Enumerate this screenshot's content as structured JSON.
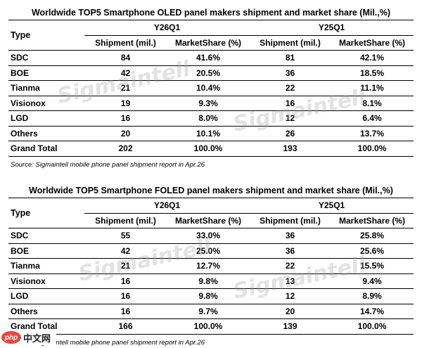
{
  "watermark": "Sigmaintell",
  "overlay": {
    "logo": "php",
    "text": "中文网"
  },
  "tables": [
    {
      "title": "Worldwide TOP5 Smartphone OLED panel makers shipment and market share (Mil.,%)",
      "type_header": "Type",
      "periods": [
        "Y26Q1",
        "Y25Q1"
      ],
      "col_shipment": "Shipment (mil.)",
      "col_share": "MarketShare (%)",
      "rows": [
        {
          "name": "SDC",
          "s1": "84",
          "m1": "41.6%",
          "s2": "81",
          "m2": "42.1%"
        },
        {
          "name": "BOE",
          "s1": "42",
          "m1": "20.5%",
          "s2": "36",
          "m2": "18.5%"
        },
        {
          "name": "Tianma",
          "s1": "21",
          "m1": "10.4%",
          "s2": "22",
          "m2": "11.1%"
        },
        {
          "name": "Visionox",
          "s1": "19",
          "m1": "9.3%",
          "s2": "16",
          "m2": "8.1%"
        },
        {
          "name": "LGD",
          "s1": "16",
          "m1": "8.0%",
          "s2": "12",
          "m2": "6.4%"
        },
        {
          "name": "Others",
          "s1": "20",
          "m1": "10.1%",
          "s2": "26",
          "m2": "13.7%"
        },
        {
          "name": "Grand Total",
          "s1": "202",
          "m1": "100.0%",
          "s2": "193",
          "m2": "100.0%"
        }
      ],
      "source": "Source: Sigmaintell mobile phone panel shipment report in Apr.26"
    },
    {
      "title": "Worldwide TOP5 Smartphone FOLED panel makers shipment and market share (Mil.,%)",
      "type_header": "Type",
      "periods": [
        "Y26Q1",
        "Y25Q1"
      ],
      "col_shipment": "Shipment (mil.)",
      "col_share": "MarketShare (%)",
      "rows": [
        {
          "name": "SDC",
          "s1": "55",
          "m1": "33.0%",
          "s2": "36",
          "m2": "25.8%"
        },
        {
          "name": "BOE",
          "s1": "42",
          "m1": "25.0%",
          "s2": "36",
          "m2": "25.6%"
        },
        {
          "name": "Tianma",
          "s1": "21",
          "m1": "12.7%",
          "s2": "22",
          "m2": "15.5%"
        },
        {
          "name": "Visionox",
          "s1": "16",
          "m1": "9.8%",
          "s2": "13",
          "m2": "9.4%"
        },
        {
          "name": "LGD",
          "s1": "16",
          "m1": "9.8%",
          "s2": "12",
          "m2": "8.9%"
        },
        {
          "name": "Others",
          "s1": "16",
          "m1": "9.7%",
          "s2": "20",
          "m2": "14.7%"
        },
        {
          "name": "Grand Total",
          "s1": "166",
          "m1": "100.0%",
          "s2": "139",
          "m2": "100.0%"
        }
      ],
      "source": "Source: Sigmaintell mobile phone panel shipment report in Apr.26"
    }
  ]
}
